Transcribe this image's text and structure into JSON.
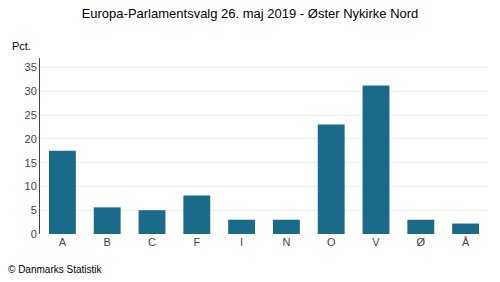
{
  "chart_data": {
    "type": "bar",
    "title": "Europa-Parlamentsvalg 26. maj 2019 - Øster Nykirke Nord",
    "ylabel": "Pct.",
    "annotations": [
      "© Danmarks Statistik"
    ],
    "categories": [
      "A",
      "B",
      "C",
      "F",
      "I",
      "N",
      "O",
      "V",
      "Ø",
      "Å"
    ],
    "values": [
      17.5,
      5.6,
      5.0,
      8.1,
      3.0,
      3.0,
      23.0,
      31.2,
      3.0,
      2.2
    ],
    "color": "#1a6b8a",
    "ylim": [
      0,
      37
    ],
    "yticks": [
      0,
      5,
      10,
      15,
      20,
      25,
      30,
      35
    ],
    "grid": true
  }
}
